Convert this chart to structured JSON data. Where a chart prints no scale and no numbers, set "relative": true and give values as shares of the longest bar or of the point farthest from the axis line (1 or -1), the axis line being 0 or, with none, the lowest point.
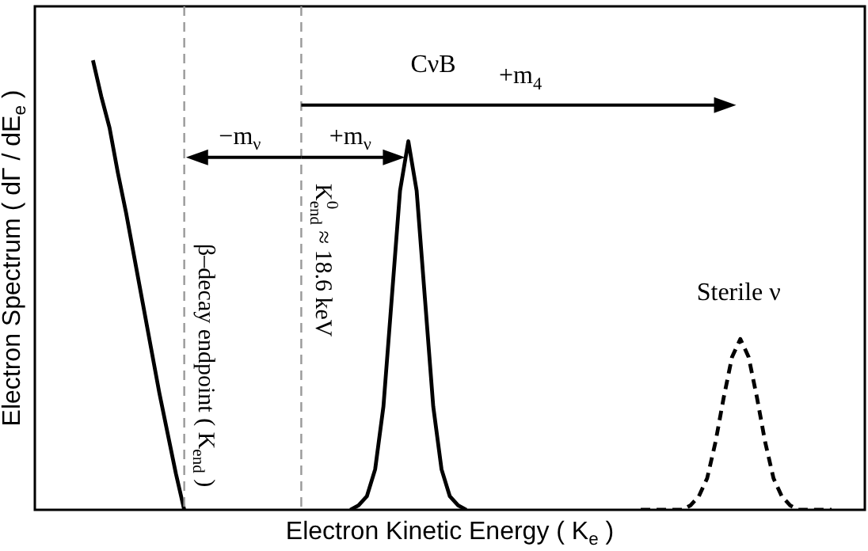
{
  "chart_data": {
    "type": "line",
    "relative": true,
    "xlabel": "Electron Kinetic Energy ( K$_{e}$ )",
    "ylabel": "Electron Spectrum ( dΓ / dE$_{e}$ )",
    "grid": false,
    "legend": false,
    "marker": "none",
    "categories": [
      null,
      null,
      null,
      null,
      null,
      null,
      null,
      null,
      null,
      null,
      null,
      null,
      null,
      null,
      null,
      null,
      null,
      null,
      null,
      null,
      null,
      null,
      null,
      null,
      null,
      null,
      null,
      null,
      null,
      null,
      null,
      null,
      null,
      null,
      null,
      null,
      null,
      null,
      null,
      null,
      null,
      null,
      null,
      null,
      null,
      null,
      null,
      null,
      null,
      null,
      null,
      null,
      null,
      null,
      null,
      null,
      null,
      null,
      null,
      null,
      null,
      null,
      null,
      null,
      null,
      null,
      null,
      null,
      null,
      null,
      null,
      null,
      null,
      null,
      null,
      null,
      null,
      null,
      null,
      null,
      null,
      null,
      null,
      null,
      null,
      null,
      null,
      null,
      null,
      null,
      null,
      null,
      null,
      null,
      null,
      null,
      null,
      null,
      null,
      null,
      null
    ],
    "series": [
      {
        "color": "#000000",
        "line_style": "solid",
        "values": [
          null,
          null,
          null,
          null,
          null,
          null,
          null,
          1,
          0.92,
          0.85,
          0.75,
          0.66,
          0.56,
          0.46,
          0.36,
          0.26,
          0.17,
          0.08,
          0,
          null,
          null,
          null,
          null,
          null,
          null,
          null,
          null,
          null,
          null,
          null,
          null,
          null,
          null,
          null,
          null,
          null,
          null,
          null,
          null,
          null,
          null,
          null,
          null,
          null,
          null,
          null,
          null,
          null,
          null,
          null,
          null,
          null,
          null,
          null,
          null,
          null,
          null,
          null,
          null,
          null,
          null,
          null,
          null,
          null,
          null,
          null,
          null,
          null,
          null,
          null,
          null,
          null,
          null,
          null,
          null,
          null,
          null,
          null,
          null,
          null,
          null,
          null,
          null,
          null,
          null,
          null,
          null,
          null,
          null,
          null,
          null,
          null,
          null,
          null,
          null,
          null,
          null,
          null,
          null,
          null,
          null
        ]
      },
      {
        "color": "#000000",
        "line_style": "solid",
        "values": [
          null,
          null,
          null,
          null,
          null,
          null,
          null,
          null,
          null,
          null,
          null,
          null,
          null,
          null,
          null,
          null,
          null,
          null,
          null,
          null,
          null,
          null,
          null,
          null,
          null,
          null,
          null,
          null,
          null,
          null,
          null,
          null,
          null,
          null,
          null,
          null,
          null,
          null,
          0,
          0.01,
          0.03,
          0.09,
          0.23,
          0.47,
          0.71,
          0.82,
          0.71,
          0.47,
          0.23,
          0.09,
          0.03,
          0.01,
          0,
          null,
          null,
          null,
          null,
          null,
          null,
          null,
          null,
          null,
          null,
          null,
          null,
          null,
          null,
          null,
          null,
          null,
          null,
          null,
          null,
          null,
          null,
          null,
          null,
          null,
          null,
          null,
          null,
          null,
          null,
          null,
          null,
          null,
          null,
          null,
          null,
          null,
          null,
          null,
          null,
          null,
          null,
          null,
          null,
          null,
          null,
          null,
          null
        ]
      },
      {
        "color": "#000000",
        "line_style": "dashed",
        "values": [
          null,
          null,
          null,
          null,
          null,
          null,
          null,
          null,
          null,
          null,
          null,
          null,
          null,
          null,
          null,
          null,
          null,
          null,
          null,
          null,
          null,
          null,
          null,
          null,
          null,
          null,
          null,
          null,
          null,
          null,
          null,
          null,
          null,
          null,
          null,
          null,
          null,
          null,
          null,
          null,
          null,
          null,
          null,
          null,
          null,
          null,
          null,
          null,
          null,
          null,
          null,
          null,
          null,
          null,
          null,
          null,
          null,
          null,
          null,
          null,
          null,
          null,
          null,
          null,
          null,
          null,
          null,
          null,
          null,
          null,
          null,
          null,
          null,
          0,
          0,
          0,
          0,
          0,
          0,
          0.01,
          0.03,
          0.07,
          0.15,
          0.25,
          0.34,
          0.38,
          0.34,
          0.25,
          0.15,
          0.07,
          0.03,
          0.01,
          0,
          0,
          0,
          0,
          0,
          null,
          null,
          null,
          null
        ]
      }
    ],
    "ref_lines": [
      {
        "axis": "x",
        "label": "β–decay endpoint ( K$_{end}$ )",
        "color": "#999999",
        "line_style": "dashed"
      },
      {
        "axis": "x",
        "label": "K$_{end}$$^{0}$ ≈ 18.6 keV",
        "color": "#999999",
        "line_style": "dashed"
      }
    ],
    "annotations": [
      "−m$_{ν}$",
      "+m$_{ν}$",
      "+m$_{4}$",
      "CνB",
      "Sterile ν"
    ]
  }
}
